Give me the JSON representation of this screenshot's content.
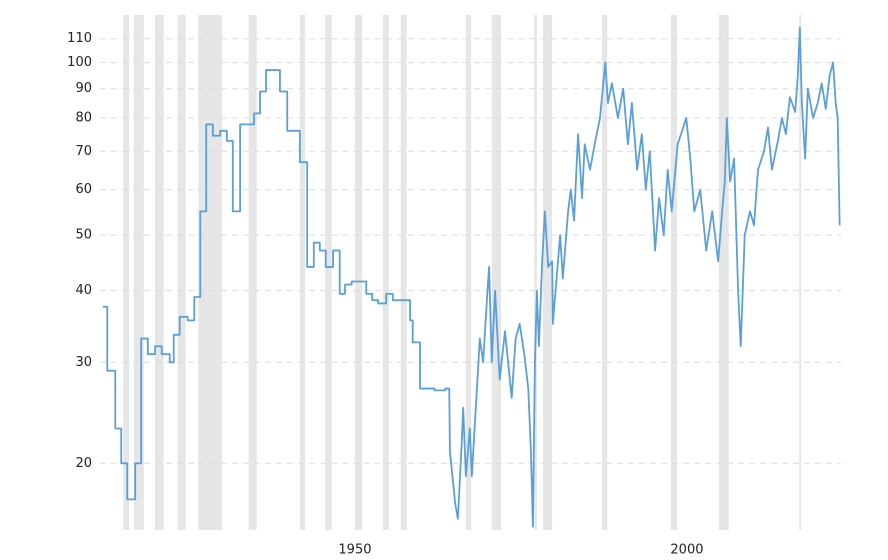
{
  "chart_data": {
    "type": "line",
    "color": "#5b9fd8",
    "log_y": true,
    "grid": true,
    "band_color": "#e6e6e6",
    "xlim": [
      1911.6,
      2023.2
    ],
    "xticks": [
      1950,
      2000
    ],
    "ylim": [
      15.3,
      121
    ],
    "yticks": [
      20,
      30,
      40,
      50,
      60,
      70,
      80,
      90,
      100,
      110
    ],
    "recessions": [
      [
        1915.1,
        1916.0
      ],
      [
        1916.7,
        1918.2
      ],
      [
        1919.9,
        1921.2
      ],
      [
        1923.3,
        1924.5
      ],
      [
        1926.4,
        1930.0
      ],
      [
        1934.0,
        1935.2
      ],
      [
        1941.7,
        1942.5
      ],
      [
        1945.5,
        1946.5
      ],
      [
        1950.0,
        1951.1
      ],
      [
        1954.2,
        1955.1
      ],
      [
        1956.9,
        1957.8
      ],
      [
        1966.7,
        1967.5
      ],
      [
        1970.6,
        1972.0
      ],
      [
        1977.0,
        1977.4
      ],
      [
        1978.3,
        1979.7
      ],
      [
        1987.2,
        1988.0
      ],
      [
        1997.6,
        1998.5
      ],
      [
        2004.8,
        2006.3
      ],
      [
        2016.9,
        2017.2
      ]
    ],
    "x": [
      1912.0,
      1912.7,
      1912.7,
      1913.9,
      1913.9,
      1914.8,
      1914.8,
      1915.7,
      1915.7,
      1916.9,
      1916.9,
      1917.8,
      1917.8,
      1918.8,
      1918.8,
      1919.9,
      1919.9,
      1920.9,
      1920.9,
      1922.1,
      1922.1,
      1922.7,
      1922.7,
      1923.6,
      1923.6,
      1924.8,
      1924.8,
      1925.8,
      1925.8,
      1926.7,
      1926.7,
      1927.6,
      1927.6,
      1928.6,
      1928.6,
      1929.7,
      1929.7,
      1930.7,
      1930.7,
      1931.6,
      1931.6,
      1932.7,
      1932.7,
      1934.8,
      1934.8,
      1935.7,
      1935.7,
      1936.6,
      1936.6,
      1938.7,
      1938.7,
      1939.8,
      1939.8,
      1941.7,
      1941.7,
      1942.8,
      1942.8,
      1943.8,
      1943.8,
      1944.7,
      1944.7,
      1945.6,
      1945.6,
      1946.7,
      1946.7,
      1947.7,
      1947.7,
      1948.5,
      1948.5,
      1949.5,
      1949.5,
      1951.7,
      1951.7,
      1952.6,
      1952.6,
      1953.5,
      1953.5,
      1954.7,
      1954.7,
      1955.7,
      1955.7,
      1958.3,
      1958.3,
      1958.7,
      1958.7,
      1959.8,
      1959.8,
      1962.0,
      1962.0,
      1963.6,
      1963.6,
      1964.2,
      1964.3,
      1965.1,
      1965.5,
      1966.1,
      1966.3,
      1966.7,
      1967.3,
      1967.6,
      1968.2,
      1968.8,
      1969.3,
      1969.9,
      1970.2,
      1970.6,
      1971.1,
      1971.8,
      1972.6,
      1973.6,
      1974.2,
      1974.8,
      1975.5,
      1976.1,
      1976.5,
      1976.8,
      1977.1,
      1977.4,
      1977.7,
      1978.2,
      1978.6,
      1979.1,
      1979.7,
      1979.8,
      1980.9,
      1981.3,
      1982.1,
      1982.5,
      1983.0,
      1983.6,
      1984.2,
      1984.6,
      1985.4,
      1986.1,
      1986.9,
      1987.7,
      1988.1,
      1988.7,
      1989.6,
      1990.4,
      1991.1,
      1991.7,
      1992.5,
      1993.2,
      1993.8,
      1994.4,
      1995.2,
      1995.8,
      1996.5,
      1997.1,
      1997.7,
      1998.6,
      1999.9,
      2000.5,
      2001.1,
      2002.0,
      2002.9,
      2003.8,
      2004.7,
      2005.3,
      2005.7,
      2006.0,
      2006.5,
      2007.1,
      2007.7,
      2008.1,
      2008.7,
      2009.5,
      2010.1,
      2010.7,
      2011.6,
      2012.2,
      2012.8,
      2013.7,
      2014.3,
      2014.9,
      2015.5,
      2016.3,
      2016.7,
      2017.0,
      2017.3,
      2017.8,
      2018.2,
      2019.0,
      2019.7,
      2020.3,
      2020.9,
      2021.5,
      2022.0,
      2022.4,
      2022.7,
      2023.0
    ],
    "values": [
      37.5,
      37.5,
      29,
      29,
      23,
      23,
      20,
      20,
      17.3,
      17.3,
      20,
      20,
      33,
      33,
      31,
      31,
      32,
      32,
      31,
      31,
      30,
      30,
      33.5,
      33.5,
      36,
      36,
      35.5,
      35.5,
      39,
      39,
      55,
      55,
      78,
      78,
      74.5,
      74.5,
      76,
      76,
      73,
      73,
      55,
      55,
      78,
      78,
      81.5,
      81.5,
      89,
      89,
      97,
      97,
      89,
      89,
      76,
      76,
      67,
      67,
      44,
      44,
      48.5,
      48.5,
      47,
      47,
      44,
      44,
      47,
      47,
      39.5,
      39.5,
      41,
      41,
      41.5,
      41.5,
      39.5,
      39.5,
      38.5,
      38.5,
      38,
      38,
      39.5,
      39.5,
      38.5,
      38.5,
      35.5,
      35.5,
      32.5,
      32.5,
      27,
      27,
      26.8,
      26.8,
      27,
      27,
      21,
      17,
      16,
      22,
      25,
      19,
      23,
      19,
      25,
      33,
      30,
      39,
      44,
      30,
      40,
      28,
      34,
      26,
      33,
      35,
      31,
      27,
      21,
      15.5,
      30,
      40,
      32,
      45,
      55,
      44,
      45,
      35,
      50,
      42,
      55,
      60,
      53,
      75,
      58,
      72,
      65,
      72,
      80,
      100,
      85,
      92,
      80,
      90,
      72,
      85,
      65,
      75,
      60,
      70,
      47,
      58,
      50,
      65,
      55,
      72,
      80,
      68,
      55,
      60,
      47,
      55,
      45,
      55,
      62,
      80,
      62,
      68,
      40,
      32,
      50,
      55,
      52,
      65,
      70,
      77,
      65,
      73,
      80,
      75,
      87,
      82,
      95,
      115,
      85,
      68,
      90,
      80,
      85,
      92,
      83,
      95,
      100,
      85,
      80,
      52
    ]
  }
}
